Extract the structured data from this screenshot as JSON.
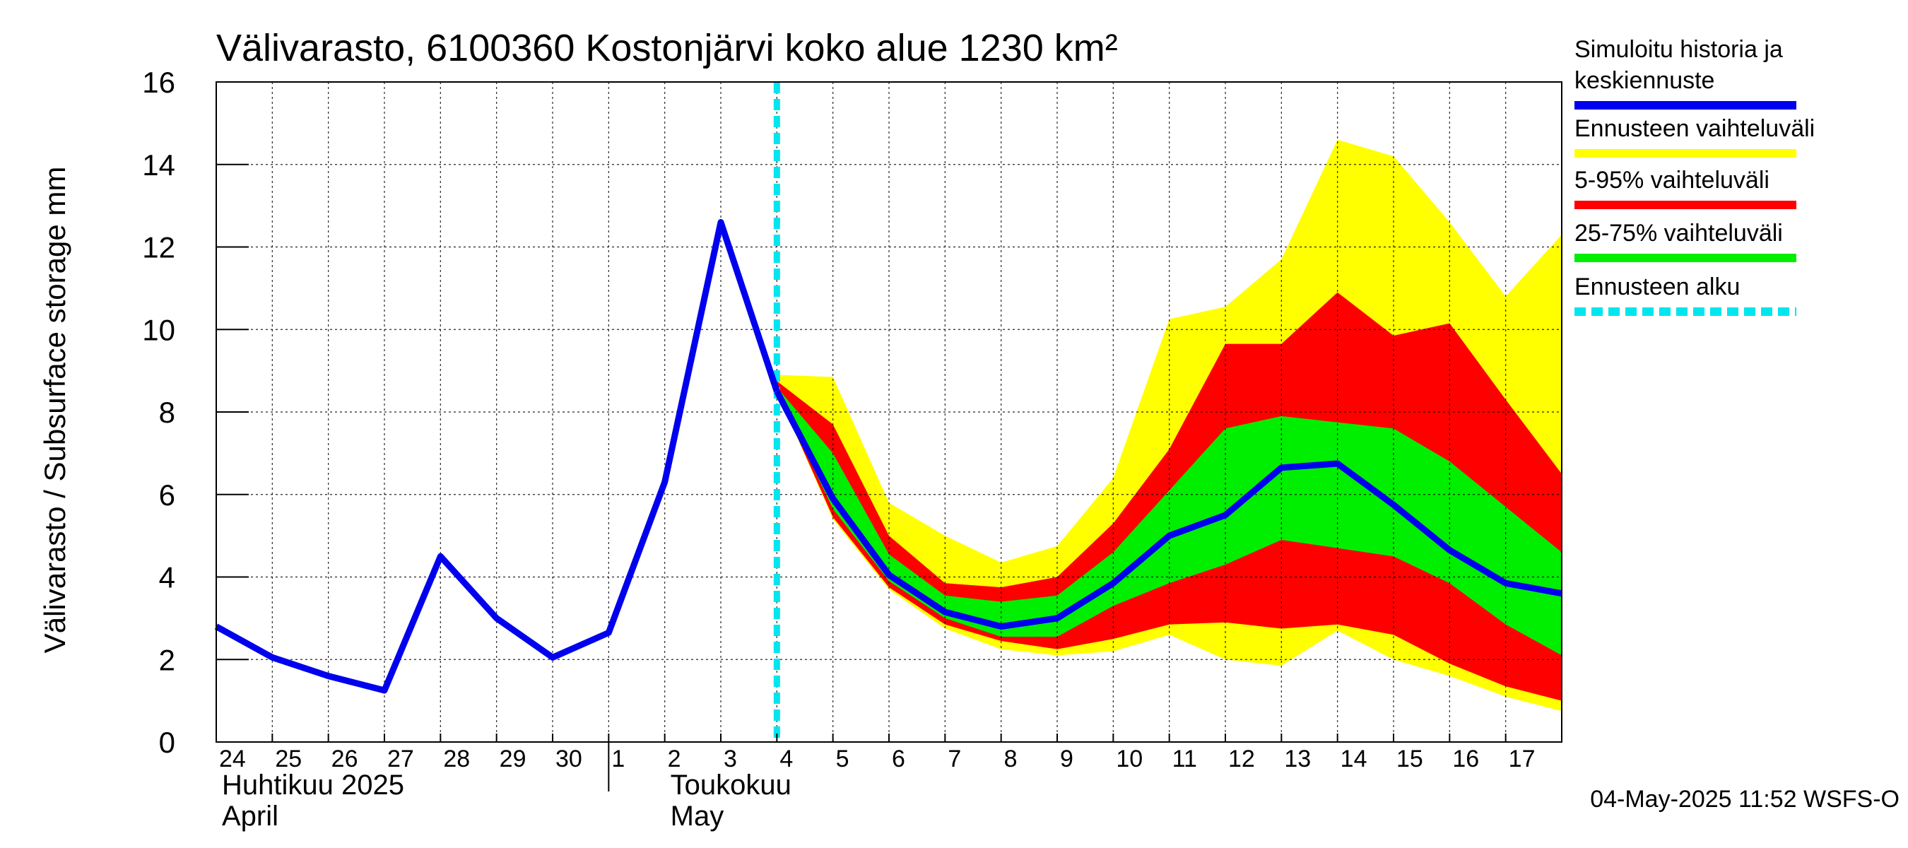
{
  "chart_data": {
    "type": "area",
    "title": "Välivarasto, 6100360 Kostonjärvi koko alue 1230 km²",
    "ylabel": "Välivarasto / Subsurface storage  mm",
    "ylim": [
      0,
      16
    ],
    "yticks": [
      0,
      2,
      4,
      6,
      8,
      10,
      12,
      14,
      16
    ],
    "xlim": [
      0,
      24
    ],
    "x_day_labels": [
      "24",
      "25",
      "26",
      "27",
      "28",
      "29",
      "30",
      "1",
      "2",
      "3",
      "4",
      "5",
      "6",
      "7",
      "8",
      "9",
      "10",
      "11",
      "12",
      "13",
      "14",
      "15",
      "16",
      "17"
    ],
    "month_labels": [
      {
        "line1": "Huhtikuu  2025",
        "line2": "April",
        "x": 0
      },
      {
        "line1": "Toukokuu",
        "line2": "May",
        "x": 8
      }
    ],
    "month_separator_x": 7,
    "forecast_start_x": 10,
    "history": {
      "name": "Simuloitu historia ja keskiennuste",
      "color": "#0000ee",
      "x": [
        0,
        1,
        2,
        3,
        4,
        5,
        6,
        7,
        8,
        9,
        10
      ],
      "y": [
        2.8,
        2.05,
        1.6,
        1.25,
        4.5,
        3.0,
        2.05,
        2.65,
        6.3,
        12.6,
        8.5
      ]
    },
    "forecast_median": {
      "x": [
        10,
        11,
        12,
        13,
        14,
        15,
        16,
        17,
        18,
        19,
        20,
        21,
        22,
        23,
        24
      ],
      "y": [
        8.5,
        5.9,
        4.05,
        3.15,
        2.8,
        3.0,
        3.85,
        5.0,
        5.5,
        6.65,
        6.75,
        5.75,
        4.65,
        3.85,
        3.6
      ]
    },
    "bands": [
      {
        "name": "Ennusteen vaihteluväli",
        "color": "#ffff00",
        "x": [
          10,
          11,
          12,
          13,
          14,
          15,
          16,
          17,
          18,
          19,
          20,
          21,
          22,
          23,
          24
        ],
        "lower": [
          8.5,
          5.4,
          3.7,
          2.75,
          2.25,
          2.1,
          2.2,
          2.6,
          2.0,
          1.85,
          2.7,
          2.0,
          1.6,
          1.1,
          0.75
        ],
        "upper": [
          8.9,
          8.85,
          5.8,
          5.0,
          4.35,
          4.75,
          6.4,
          10.25,
          10.55,
          11.7,
          14.6,
          14.2,
          12.6,
          10.8,
          12.3
        ]
      },
      {
        "name": "5-95% vaihteluväli",
        "color": "#ff0000",
        "x": [
          10,
          11,
          12,
          13,
          14,
          15,
          16,
          17,
          18,
          19,
          20,
          21,
          22,
          23,
          24
        ],
        "lower": [
          8.5,
          5.45,
          3.75,
          2.85,
          2.45,
          2.25,
          2.5,
          2.85,
          2.9,
          2.75,
          2.85,
          2.6,
          1.9,
          1.35,
          1.0
        ],
        "upper": [
          8.75,
          7.7,
          5.0,
          3.85,
          3.75,
          4.0,
          5.3,
          7.1,
          9.65,
          9.65,
          10.9,
          9.85,
          10.15,
          8.3,
          6.5
        ]
      },
      {
        "name": "25-75% vaihteluväli",
        "color": "#00ee00",
        "x": [
          10,
          11,
          12,
          13,
          14,
          15,
          16,
          17,
          18,
          19,
          20,
          21,
          22,
          23,
          24
        ],
        "lower": [
          8.5,
          5.65,
          3.9,
          3.0,
          2.55,
          2.55,
          3.3,
          3.85,
          4.3,
          4.9,
          4.7,
          4.5,
          3.85,
          2.85,
          2.1
        ],
        "upper": [
          8.6,
          7.0,
          4.55,
          3.55,
          3.4,
          3.55,
          4.6,
          6.1,
          7.6,
          7.9,
          7.75,
          7.6,
          6.8,
          5.7,
          4.6
        ]
      }
    ],
    "legend": [
      {
        "label_line1": "Simuloitu historia ja",
        "label_line2": "keskiennuste",
        "color": "#0000ee",
        "style": "solid"
      },
      {
        "label_line1": "Ennusteen vaihteluväli",
        "label_line2": "",
        "color": "#ffff00",
        "style": "solid"
      },
      {
        "label_line1": "5-95% vaihteluväli",
        "label_line2": "",
        "color": "#ff0000",
        "style": "solid"
      },
      {
        "label_line1": "25-75% vaihteluväli",
        "label_line2": "",
        "color": "#00ee00",
        "style": "solid"
      },
      {
        "label_line1": "Ennusteen alku",
        "label_line2": "",
        "color": "#00e5ee",
        "style": "dashed"
      }
    ],
    "footer": "04-May-2025 11:52 WSFS-O"
  }
}
